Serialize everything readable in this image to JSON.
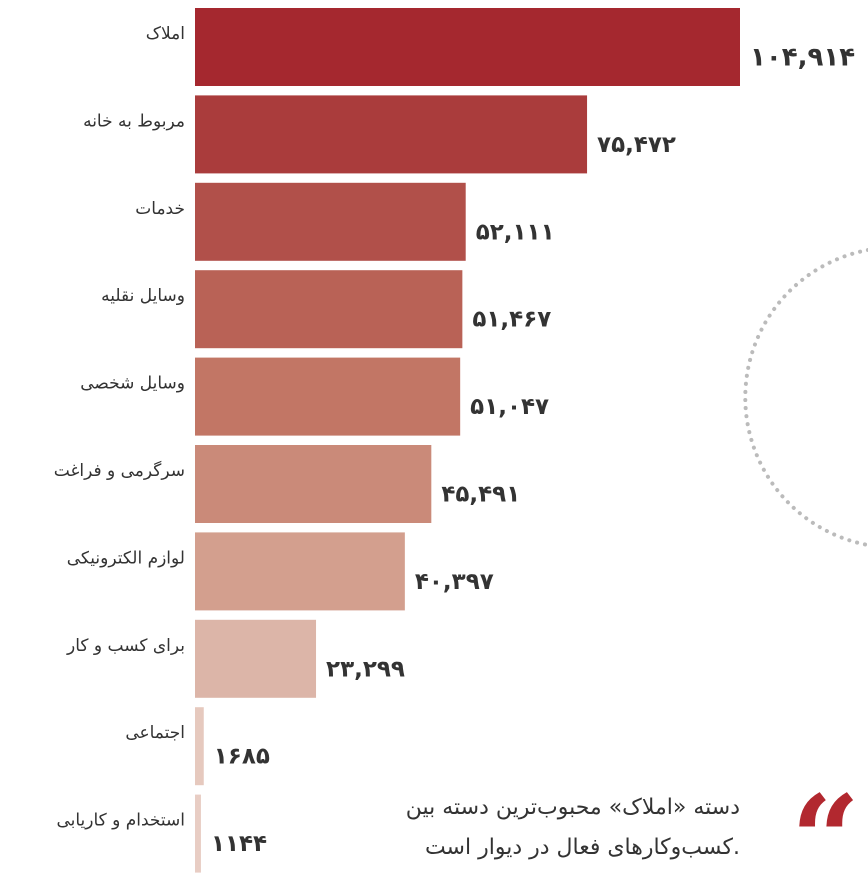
{
  "chart_data": {
    "type": "bar",
    "orientation": "horizontal",
    "categories": [
      "املاک",
      "مربوط به خانه",
      "خدمات",
      "وسایل نقلیه",
      "وسایل شخصی",
      "سرگرمی و فراغت",
      "لوازم الکترونیکی",
      "برای کسب و کار",
      "اجتماعی",
      "استخدام و کاریابی"
    ],
    "values": [
      104914,
      75472,
      52111,
      51467,
      51047,
      45491,
      40397,
      23299,
      1685,
      1144
    ],
    "value_labels": [
      "۱۰۴,۹۱۴",
      "۷۵,۴۷۲",
      "۵۲,۱۱۱",
      "۵۱,۴۶۷",
      "۵۱,۰۴۷",
      "۴۵,۴۹۱",
      "۴۰,۳۹۷",
      "۲۳,۲۹۹",
      "۱۶۸۵",
      "۱۱۴۴"
    ],
    "colors": [
      "#a5282f",
      "#aa3c3c",
      "#b1504a",
      "#b96256",
      "#c27665",
      "#ca8a79",
      "#d39f8e",
      "#dcb5a8",
      "#e6c9be",
      "#e8cdc4"
    ],
    "annotation": [
      "دسته «املاک» محبوب‌ترین دسته بین",
      "کسب‌وکارهای فعال در دیوار است."
    ]
  }
}
